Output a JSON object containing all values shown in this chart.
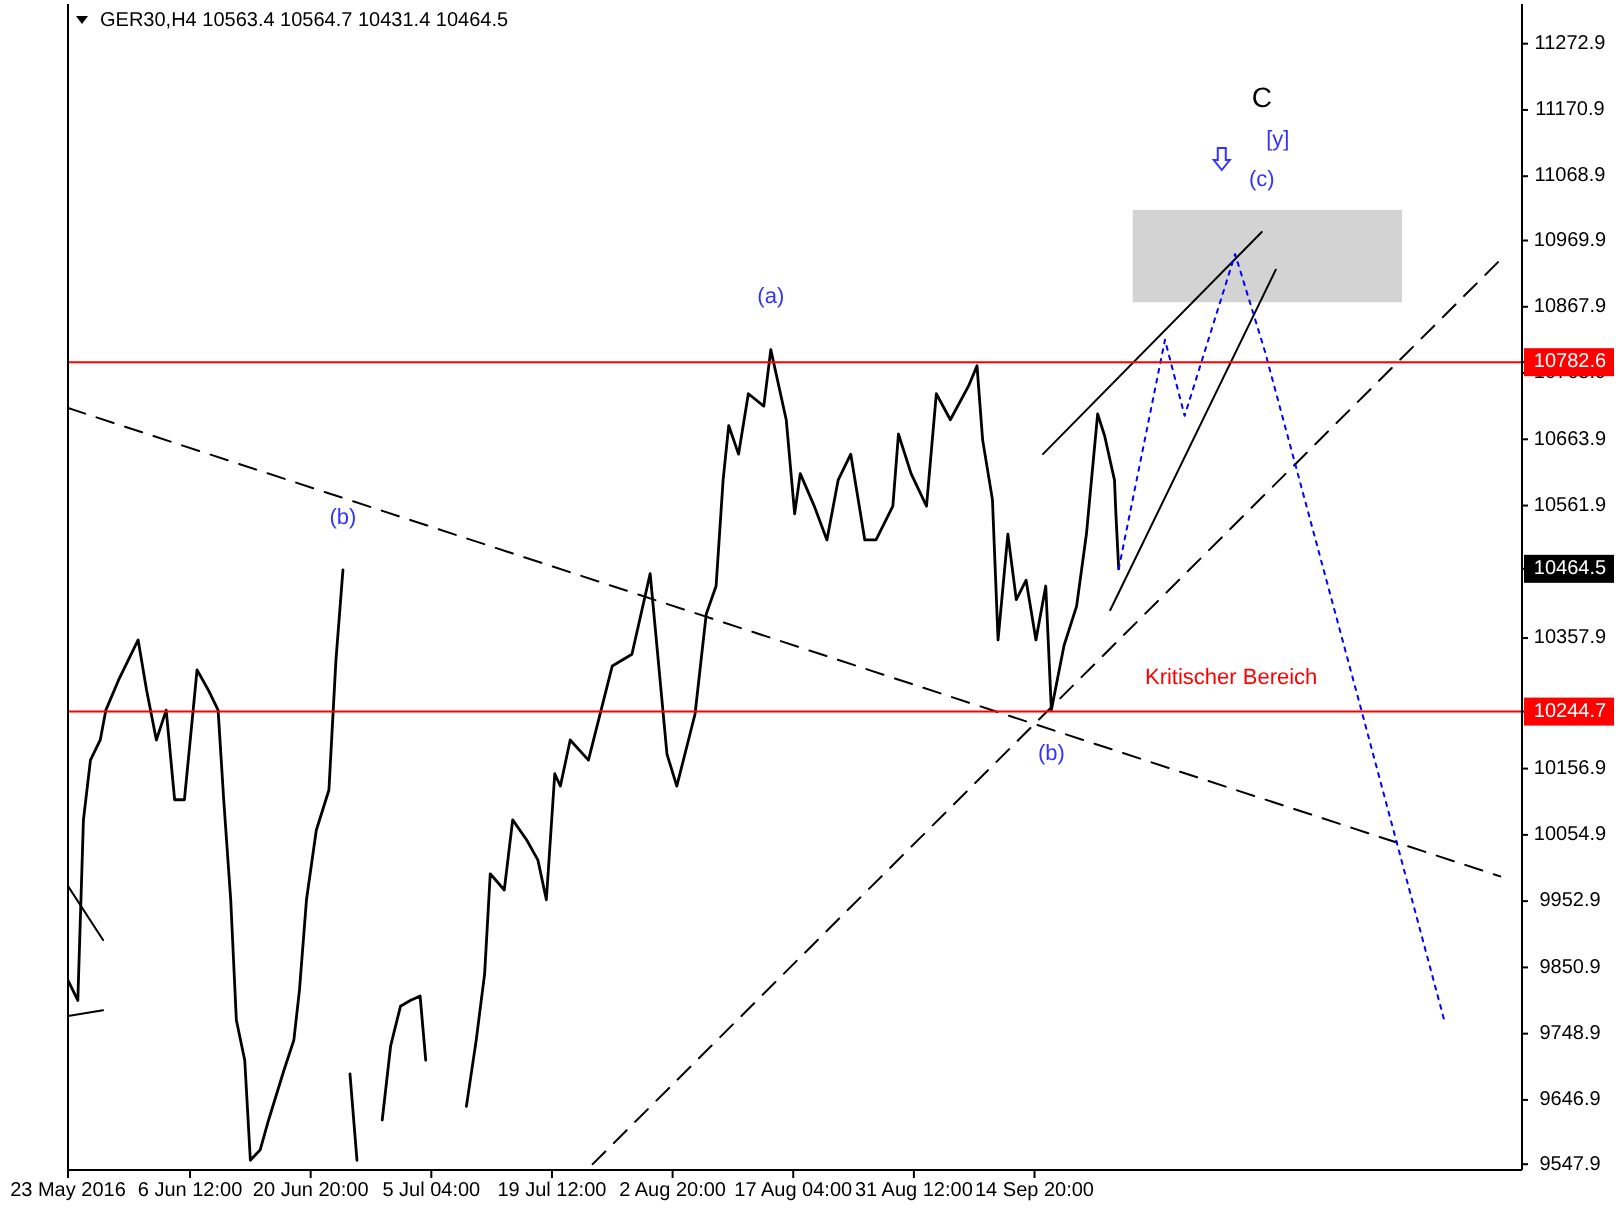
{
  "chart_data": {
    "type": "line",
    "title": "GER30,H4  10563.4 10564.7 10431.4 10464.5",
    "xlim": [
      "2016-05-23T00:00",
      "2016-11-11T18:00"
    ],
    "xticks": [
      {
        "value": "2016-05-23T00:00",
        "label": "23 May 2016"
      },
      {
        "value": "2016-06-06T12:00",
        "label": "6 Jun 12:00"
      },
      {
        "value": "2016-06-20T20:00",
        "label": "20 Jun 20:00"
      },
      {
        "value": "2016-07-05T04:00",
        "label": "5 Jul 04:00"
      },
      {
        "value": "2016-07-19T12:00",
        "label": "19 Jul 12:00"
      },
      {
        "value": "2016-08-02T20:00",
        "label": "2 Aug 20:00"
      },
      {
        "value": "2016-08-17T04:00",
        "label": "17 Aug 04:00"
      },
      {
        "value": "2016-08-31T12:00",
        "label": "31 Aug 12:00"
      },
      {
        "value": "2016-09-14T20:00",
        "label": "14 Sep 20:00"
      }
    ],
    "ylim": [
      9539,
      11334
    ],
    "yticks": [
      9547.9,
      9646.9,
      9748.9,
      9850.9,
      9952.9,
      10054.9,
      10156.9,
      10244.7,
      10357.9,
      10464.5,
      10561.9,
      10663.9,
      10765.9,
      10782.6,
      10867.9,
      10969.9,
      11068.9,
      11170.9,
      11272.9
    ],
    "grid": false,
    "series": [
      {
        "color": "#000000",
        "line_style": "solid",
        "x": [
          "2016-05-23T00:00",
          "2016-05-24T04:00",
          "2016-05-24T20:00",
          "2016-05-25T16:00",
          "2016-05-26T20:00",
          "2016-05-27T12:00",
          "2016-05-29T00:00",
          "2016-05-31T08:00",
          "2016-06-01T08:00",
          "2016-06-02T12:00",
          "2016-06-03T16:00",
          "2016-06-04T16:00",
          "2016-06-05T20:00",
          "2016-06-07T08:00",
          "2016-06-08T16:00",
          "2016-06-09T20:00",
          "2016-06-10T12:00",
          "2016-06-11T08:00",
          "2016-06-12T00:00",
          "2016-06-13T00:00",
          "2016-06-13T16:00",
          "2016-06-14T20:00",
          "2016-06-15T20:00",
          "2016-06-17T16:00",
          "2016-06-18T20:00",
          "2016-06-19T12:00",
          "2016-06-20T08:00",
          "2016-06-21T12:00",
          "2016-06-23T00:00",
          "2016-06-23T20:00",
          "2016-06-24T16:00",
          "2016-06-25T00:00",
          "2016-06-25T12:00",
          "2016-06-26T08:00",
          "2016-06-27T16:00",
          "2016-06-29T08:00",
          "2016-06-30T08:00",
          "2016-07-01T12:00",
          "2016-07-02T16:00",
          "2016-07-03T20:00",
          "2016-07-04T12:00",
          "2016-07-05T08:00",
          "2016-07-08T04:00",
          "2016-07-09T08:00",
          "2016-07-10T12:00",
          "2016-07-11T12:00",
          "2016-07-12T04:00",
          "2016-07-13T20:00",
          "2016-07-14T20:00",
          "2016-07-16T12:00",
          "2016-07-17T20:00",
          "2016-07-18T20:00",
          "2016-07-19T20:00",
          "2016-07-20T12:00",
          "2016-07-21T16:00",
          "2016-07-23T20:00",
          "2016-07-26T16:00",
          "2016-07-29T00:00",
          "2016-07-31T04:00",
          "2016-08-02T04:00",
          "2016-08-03T08:00",
          "2016-08-05T12:00",
          "2016-08-06T20:00",
          "2016-08-08T00:00",
          "2016-08-08T20:00",
          "2016-08-09T12:00",
          "2016-08-10T16:00",
          "2016-08-11T20:00",
          "2016-08-13T16:00",
          "2016-08-14T12:00",
          "2016-08-16T08:00",
          "2016-08-17T08:00",
          "2016-08-18T00:00",
          "2016-08-19T16:00",
          "2016-08-21T04:00",
          "2016-08-22T12:00",
          "2016-08-24T00:00",
          "2016-08-25T16:00",
          "2016-08-27T00:00",
          "2016-08-29T00:00",
          "2016-08-29T16:00",
          "2016-08-31T04:00",
          "2016-09-02T00:00",
          "2016-09-03T04:00",
          "2016-09-04T20:00",
          "2016-09-07T00:00",
          "2016-09-08T00:00",
          "2016-09-08T16:00",
          "2016-09-09T20:00",
          "2016-09-10T12:00",
          "2016-09-11T16:00",
          "2016-09-12T16:00",
          "2016-09-13T20:00",
          "2016-09-15T00:00",
          "2016-09-16T04:00",
          "2016-09-16T20:00",
          "2016-09-18T08:00",
          "2016-09-19T20:00",
          "2016-09-21T00:00",
          "2016-09-22T08:00",
          "2016-09-23T04:00",
          "2016-09-24T08:00",
          "2016-09-24T12:00",
          "2016-09-24T20:00"
        ],
        "values": [
          9831,
          9800,
          10078,
          10170,
          10201,
          10247,
          10293,
          10355,
          10278,
          10201,
          10247,
          10109,
          10109,
          10309,
          10278,
          10247,
          10109,
          9955,
          9770,
          9708,
          9554,
          9570,
          9616,
          9693,
          9739,
          9816,
          9955,
          10062,
          10124,
          10324,
          10463,
          null,
          9687,
          9554,
          null,
          9616,
          9730,
          9791,
          9800,
          9807,
          9708,
          null,
          null,
          9637,
          9739,
          9841,
          9995,
          9970,
          10078,
          10047,
          10016,
          9955,
          10149,
          10130,
          10201,
          10170,
          10315,
          10333,
          10457,
          10179,
          10130,
          10241,
          10395,
          10438,
          10601,
          10685,
          10641,
          10734,
          10715,
          10802,
          10694,
          10549,
          10611,
          10561,
          10509,
          10601,
          10641,
          10509,
          10509,
          10561,
          10672,
          10611,
          10561,
          10734,
          10694,
          10746,
          10777,
          10663,
          10571,
          10355,
          10518,
          10417,
          10447,
          10355,
          10438,
          10247,
          10346,
          10407,
          10518,
          10703,
          10669,
          10601,
          10549,
          10464.5
        ]
      },
      {
        "color": "#000000",
        "line_style": "dashed",
        "x": [
          "2016-05-23T00:00",
          "2016-11-09T04:00"
        ],
        "values": [
          10712,
          9991
        ]
      },
      {
        "color": "#000000",
        "line_style": "dashed",
        "x": [
          "2016-07-24T08:00",
          "2016-11-09T04:00"
        ],
        "values": [
          9548,
          10940
        ]
      },
      {
        "color": "#000000",
        "line_style": "solid",
        "x": [
          "2016-09-15T20:00",
          "2016-10-11T20:00"
        ],
        "values": [
          10641,
          10983
        ]
      },
      {
        "color": "#000000",
        "line_style": "solid",
        "x": [
          "2016-09-23T20:00",
          "2016-10-13T12:00"
        ],
        "values": [
          10401,
          10925
        ]
      },
      {
        "color": "#000000",
        "line_style": "solid",
        "x": [
          "2016-05-23T00:00",
          "2016-05-27T04:00"
        ],
        "values": [
          9976,
          9893
        ]
      },
      {
        "color": "#000000",
        "line_style": "solid",
        "x": [
          "2016-05-23T00:00",
          "2016-05-27T04:00"
        ],
        "values": [
          9776,
          9785
        ]
      },
      {
        "color": "#0000ff",
        "line_style": "dotted",
        "x": [
          "2016-09-24T20:00",
          "2016-09-30T08:00",
          "2016-10-02T16:00",
          "2016-10-08T16:00",
          "2016-10-12T04:00",
          "2016-10-23T08:00",
          "2016-11-02T12:00"
        ],
        "values": [
          10464.5,
          10817,
          10700,
          10949,
          10801,
          10263,
          9770
        ]
      },
      {
        "type": "area",
        "color": "#d3d3d3",
        "x": [
          "2016-09-26T12:00",
          "2016-10-28T12:00"
        ],
        "values": [
          null,
          null
        ],
        "lower": [
          10875,
          10875
        ],
        "upper": [
          11017,
          11017
        ]
      }
    ],
    "ref_lines": [
      {
        "axis": "y",
        "value": 10782.6,
        "label": null,
        "color": "#ff0000"
      },
      {
        "axis": "y",
        "value": 10244.7,
        "label": "Kritischer Bereich",
        "color": "#ff0000"
      }
    ],
    "annotations": [
      {
        "text": "(c)",
        "x": "2016-10-11T20:00",
        "y": 10983
      },
      "[y]",
      "C",
      {
        "text": "(a)",
        "x": "2016-08-14T12:00",
        "y": 10802
      },
      {
        "text": "(b)",
        "x": "2016-06-24T16:00",
        "y": 10463
      },
      {
        "text": "(b)",
        "x": "2016-09-16T20:00",
        "y": 10247
      }
    ]
  }
}
